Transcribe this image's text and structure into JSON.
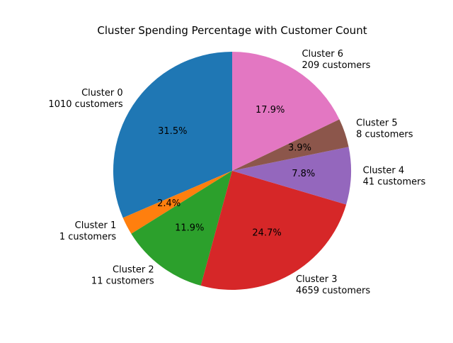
{
  "chart_data": {
    "type": "pie",
    "title": "Cluster Spending Percentage with Customer Count",
    "start_angle_deg": 90,
    "direction": "counterclockwise",
    "legend": "none",
    "slices": [
      {
        "label": "Cluster 0",
        "sublabel": "1010 customers",
        "percent": 31.5,
        "pct_label": "31.5%",
        "color": "#1f77b4"
      },
      {
        "label": "Cluster 1",
        "sublabel": "1 customers",
        "percent": 2.4,
        "pct_label": "2.4%",
        "color": "#ff7f0e"
      },
      {
        "label": "Cluster 2",
        "sublabel": "11 customers",
        "percent": 11.9,
        "pct_label": "11.9%",
        "color": "#2ca02c"
      },
      {
        "label": "Cluster 3",
        "sublabel": "4659 customers",
        "percent": 24.7,
        "pct_label": "24.7%",
        "color": "#d62728"
      },
      {
        "label": "Cluster 4",
        "sublabel": "41 customers",
        "percent": 7.8,
        "pct_label": "7.8%",
        "color": "#9467bd"
      },
      {
        "label": "Cluster 5",
        "sublabel": "8 customers",
        "percent": 3.9,
        "pct_label": "3.9%",
        "color": "#8c564b"
      },
      {
        "label": "Cluster 6",
        "sublabel": "209 customers",
        "percent": 17.9,
        "pct_label": "17.9%",
        "color": "#e377c2"
      }
    ]
  }
}
